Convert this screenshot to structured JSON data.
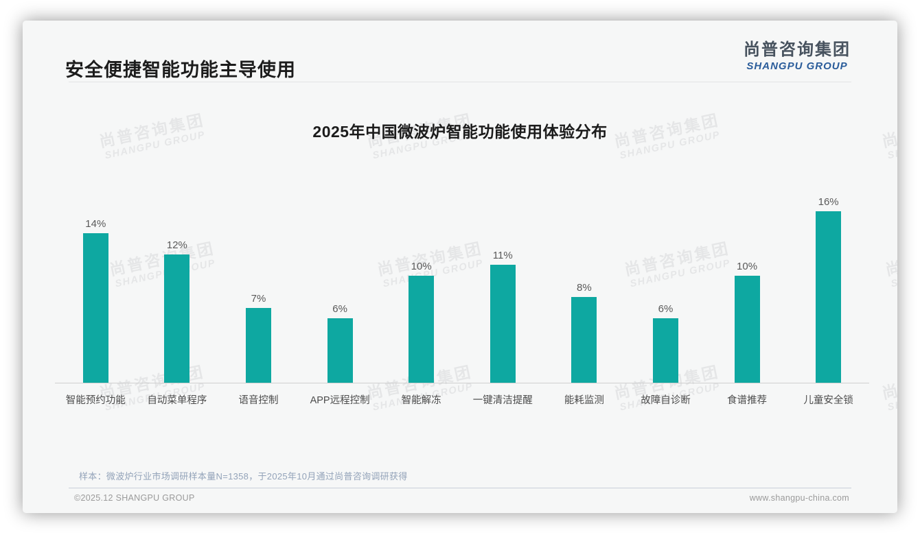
{
  "header": {
    "title": "安全便捷智能功能主导使用",
    "logo_cn": "尚普咨询集团",
    "logo_en": "SHANGPU GROUP"
  },
  "chart_data": {
    "type": "bar",
    "title": "2025年中国微波炉智能功能使用体验分布",
    "categories": [
      "智能预约功能",
      "自动菜单程序",
      "语音控制",
      "APP远程控制",
      "智能解冻",
      "一键清洁提醒",
      "能耗监测",
      "故障自诊断",
      "食谱推荐",
      "儿童安全锁"
    ],
    "values": [
      14,
      12,
      7,
      6,
      10,
      11,
      8,
      6,
      10,
      16
    ],
    "unit": "%",
    "bar_color": "#0ea8a1",
    "ylim": [
      0,
      18
    ],
    "data_labels": true,
    "grid": false,
    "legend": "none",
    "y_axis_visible": false
  },
  "footnote": {
    "source": "样本：微波炉行业市场调研样本量N=1358，于2025年10月通过尚普咨询调研获得"
  },
  "footer": {
    "left": "©2025.12 SHANGPU GROUP",
    "right": "www.shangpu-china.com"
  },
  "watermark": {
    "line1": "尚普咨询集团",
    "line2": "SHANGPU GROUP"
  }
}
